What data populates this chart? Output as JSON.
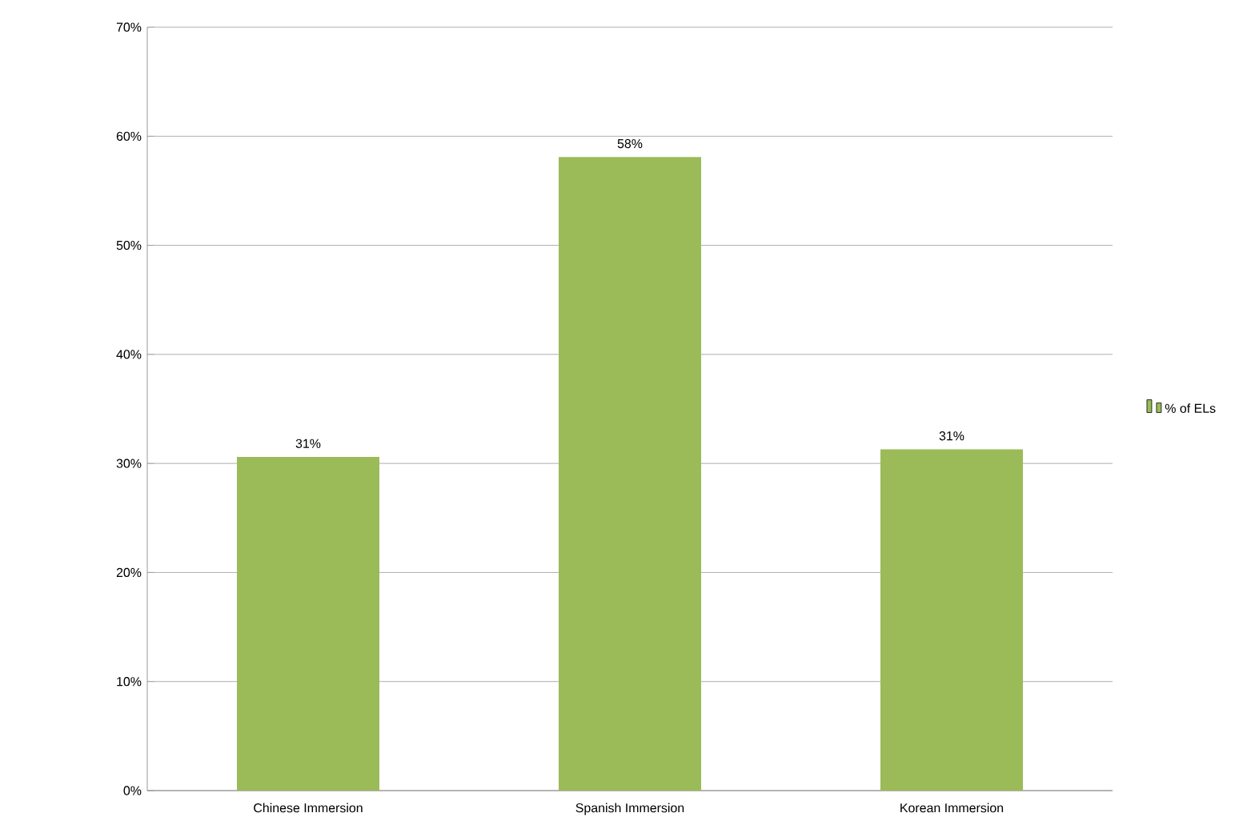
{
  "chart_data": {
    "type": "bar",
    "categories": [
      "Chinese Immersion",
      "Spanish Immersion",
      "Korean Immersion"
    ],
    "series": [
      {
        "name": "% of ELs",
        "color": "#9bbb59",
        "values": [
          30.6,
          58.1,
          31.3
        ],
        "value_labels": [
          "31%",
          "58%",
          "31%"
        ]
      }
    ],
    "ylim": [
      0,
      70
    ],
    "yticks": [
      {
        "value": 0,
        "label": "0%"
      },
      {
        "value": 10,
        "label": "10%"
      },
      {
        "value": 20,
        "label": "20%"
      },
      {
        "value": 30,
        "label": "30%"
      },
      {
        "value": 40,
        "label": "40%"
      },
      {
        "value": 50,
        "label": "50%"
      },
      {
        "value": 60,
        "label": "60%"
      },
      {
        "value": 70,
        "label": "70%"
      }
    ],
    "grid": "y",
    "legend": "right"
  }
}
